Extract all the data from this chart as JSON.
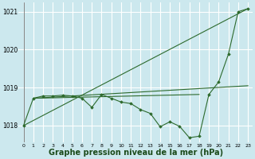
{
  "bg_color": "#cce8ee",
  "grid_color": "#ffffff",
  "line_color": "#2d6a2d",
  "marker_color": "#2d6a2d",
  "xlabel": "Graphe pression niveau de la mer (hPa)",
  "xlabel_fontsize": 7,
  "xlim": [
    -0.5,
    23.5
  ],
  "ylim": [
    1017.55,
    1021.25
  ],
  "yticks": [
    1018,
    1019,
    1020,
    1021
  ],
  "xtick_labels": [
    "0",
    "1",
    "2",
    "3",
    "4",
    "5",
    "6",
    "7",
    "8",
    "9",
    "10",
    "11",
    "12",
    "13",
    "14",
    "15",
    "16",
    "17",
    "18",
    "19",
    "20",
    "21",
    "22",
    "23"
  ],
  "series_main_x": [
    0,
    1,
    2,
    3,
    4,
    5,
    6,
    7,
    8,
    9,
    10,
    11,
    12,
    13,
    14,
    15,
    16,
    17,
    18,
    19,
    20,
    21,
    22,
    23
  ],
  "series_main_y": [
    1018.0,
    1018.72,
    1018.78,
    1018.78,
    1018.8,
    1018.78,
    1018.72,
    1018.48,
    1018.82,
    1018.72,
    1018.62,
    1018.58,
    1018.42,
    1018.32,
    1017.97,
    1018.1,
    1017.98,
    1017.68,
    1017.72,
    1018.82,
    1019.15,
    1019.88,
    1021.0,
    1021.08
  ],
  "line1_x": [
    0,
    23
  ],
  "line1_y": [
    1018.0,
    1021.08
  ],
  "line2_x": [
    1,
    18
  ],
  "line2_y": [
    1018.72,
    1018.82
  ],
  "line3_x": [
    1,
    23
  ],
  "line3_y": [
    1018.72,
    1019.05
  ]
}
